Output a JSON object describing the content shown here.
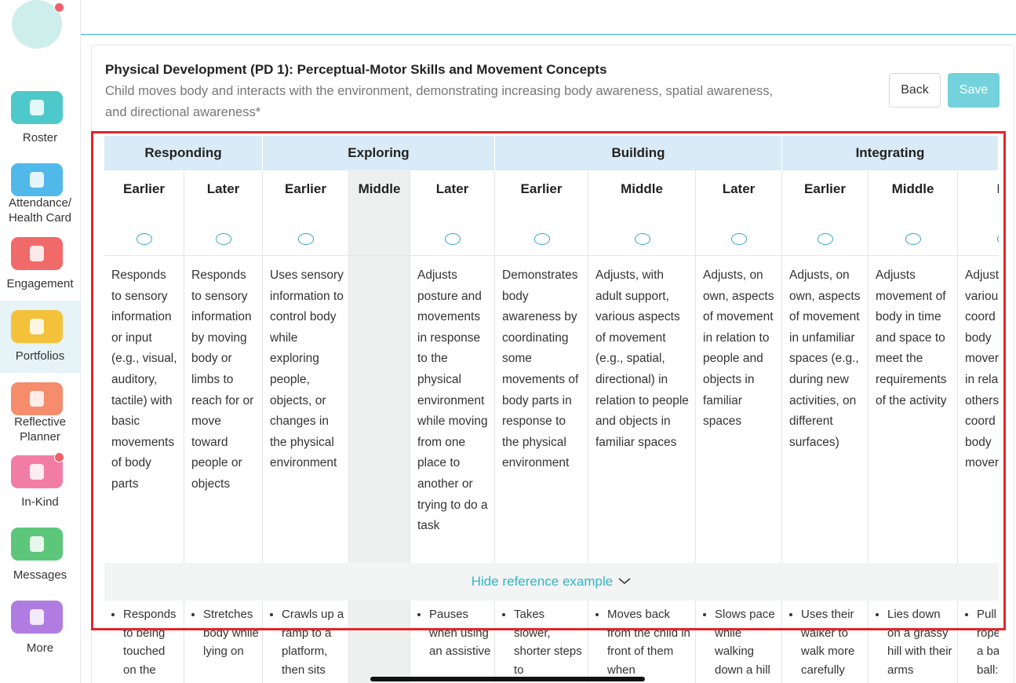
{
  "sidebar": {
    "items": [
      "Roster",
      "Attendance/\nHealth Card",
      "Engagement",
      "Portfolios",
      "Reflective\nPlanner",
      "In-Kind",
      "Messages",
      "More"
    ]
  },
  "header": {
    "title": "Physical Development (PD 1): Perceptual-Motor Skills and Movement Concepts",
    "description": "Child moves body and interacts with the environment, demonstrating increasing body awareness, spatial awareness, and directional awareness*",
    "buttons": {
      "back": "Back",
      "save": "Save"
    }
  },
  "table": {
    "groups": [
      {
        "label": "Responding",
        "columns": [
          {
            "level": "Earlier",
            "description": "Responds to sensory information or input (e.g., visual, auditory, tactile) with basic movements of body parts",
            "example": "Responds to being touched on the"
          },
          {
            "level": "Later",
            "description": "Responds to sensory information by moving body or limbs to reach for or move toward people or objects",
            "example": "Stretches body while lying on"
          }
        ]
      },
      {
        "label": "Exploring",
        "columns": [
          {
            "level": "Earlier",
            "description": "Uses sensory information to control body while exploring people, objects, or changes in the physical environment",
            "example": "Crawls up a ramp to a platform, then sits"
          },
          {
            "level": "Middle",
            "description": null,
            "example": null
          },
          {
            "level": "Later",
            "description": "Adjusts posture and movements in response to the physical environment while moving from one place to another or trying to do a task",
            "example": "Pauses when using an assistive"
          }
        ]
      },
      {
        "label": "Building",
        "columns": [
          {
            "level": "Earlier",
            "description": "Demonstrates body awareness by coordinating some movements of body parts in response to the physical environment",
            "example": "Takes slower, shorter steps to"
          },
          {
            "level": "Middle",
            "description": "Adjusts, with adult support, various aspects of movement (e.g., spatial, directional) in relation to people and objects in familiar spaces",
            "example": "Moves back from the child in front of them when"
          },
          {
            "level": "Later",
            "description": "Adjusts, on own, aspects of movement in relation to people and objects in familiar spaces",
            "example": "Slows pace while walking down a hill"
          }
        ]
      },
      {
        "label": "Integrating",
        "columns": [
          {
            "level": "Earlier",
            "description": "Adjusts, on own, aspects of movement in unfamiliar spaces (e.g., during new activities, on different surfaces)",
            "example": "Uses their walker to walk more carefully"
          },
          {
            "level": "Middle",
            "description": "Adjusts movement of body in time and space to meet the requirements of the activity",
            "example": "Lies down on a grassy hill with their arms"
          },
          {
            "level": "La",
            "description": "Adjust\nvariou\ncoord\nbody\nmover\nin rela\nothers\ncoord\nbody\nmover",
            "example": "Pull\nrope\na ba\nball:"
          }
        ]
      }
    ],
    "toggle": "Hide reference example"
  }
}
